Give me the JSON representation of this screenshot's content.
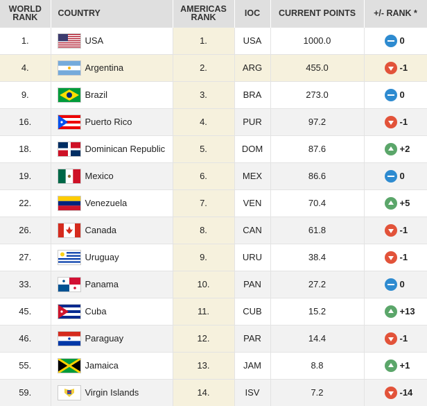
{
  "header": {
    "world_rank": "WORLD RANK",
    "country": "COUNTRY",
    "americas_rank": "AMERICAS RANK",
    "ioc": "IOC",
    "current_points": "CURRENT POINTS",
    "rank_change": "+/- RANK *"
  },
  "colors": {
    "header_bg": "#dfdfdf",
    "highlight_bg": "#f6f1dd",
    "badge_equal": "#2e8bd0",
    "badge_up": "#5ba66a",
    "badge_down": "#e2533a"
  },
  "rows": [
    {
      "world_rank": "1.",
      "country": "USA",
      "flag": "usa-flag-icon",
      "americas_rank": "1.",
      "ioc": "USA",
      "points": "1000.0",
      "change": "0",
      "trend": "eq"
    },
    {
      "world_rank": "4.",
      "country": "Argentina",
      "flag": "argentina-flag-icon",
      "americas_rank": "2.",
      "ioc": "ARG",
      "points": "455.0",
      "change": "-1",
      "trend": "down"
    },
    {
      "world_rank": "9.",
      "country": "Brazil",
      "flag": "brazil-flag-icon",
      "americas_rank": "3.",
      "ioc": "BRA",
      "points": "273.0",
      "change": "0",
      "trend": "eq"
    },
    {
      "world_rank": "16.",
      "country": "Puerto Rico",
      "flag": "puerto-rico-flag-icon",
      "americas_rank": "4.",
      "ioc": "PUR",
      "points": "97.2",
      "change": "-1",
      "trend": "down"
    },
    {
      "world_rank": "18.",
      "country": "Dominican Republic",
      "flag": "dominican-republic-flag-icon",
      "americas_rank": "5.",
      "ioc": "DOM",
      "points": "87.6",
      "change": "+2",
      "trend": "up"
    },
    {
      "world_rank": "19.",
      "country": "Mexico",
      "flag": "mexico-flag-icon",
      "americas_rank": "6.",
      "ioc": "MEX",
      "points": "86.6",
      "change": "0",
      "trend": "eq"
    },
    {
      "world_rank": "22.",
      "country": "Venezuela",
      "flag": "venezuela-flag-icon",
      "americas_rank": "7.",
      "ioc": "VEN",
      "points": "70.4",
      "change": "+5",
      "trend": "up"
    },
    {
      "world_rank": "26.",
      "country": "Canada",
      "flag": "canada-flag-icon",
      "americas_rank": "8.",
      "ioc": "CAN",
      "points": "61.8",
      "change": "-1",
      "trend": "down"
    },
    {
      "world_rank": "27.",
      "country": "Uruguay",
      "flag": "uruguay-flag-icon",
      "americas_rank": "9.",
      "ioc": "URU",
      "points": "38.4",
      "change": "-1",
      "trend": "down"
    },
    {
      "world_rank": "33.",
      "country": "Panama",
      "flag": "panama-flag-icon",
      "americas_rank": "10.",
      "ioc": "PAN",
      "points": "27.2",
      "change": "0",
      "trend": "eq"
    },
    {
      "world_rank": "45.",
      "country": "Cuba",
      "flag": "cuba-flag-icon",
      "americas_rank": "11.",
      "ioc": "CUB",
      "points": "15.2",
      "change": "+13",
      "trend": "up"
    },
    {
      "world_rank": "46.",
      "country": "Paraguay",
      "flag": "paraguay-flag-icon",
      "americas_rank": "12.",
      "ioc": "PAR",
      "points": "14.4",
      "change": "-1",
      "trend": "down"
    },
    {
      "world_rank": "55.",
      "country": "Jamaica",
      "flag": "jamaica-flag-icon",
      "americas_rank": "13.",
      "ioc": "JAM",
      "points": "8.8",
      "change": "+1",
      "trend": "up"
    },
    {
      "world_rank": "59.",
      "country": "Virgin Islands",
      "flag": "virgin-islands-flag-icon",
      "americas_rank": "14.",
      "ioc": "ISV",
      "points": "7.2",
      "change": "-14",
      "trend": "down"
    }
  ]
}
